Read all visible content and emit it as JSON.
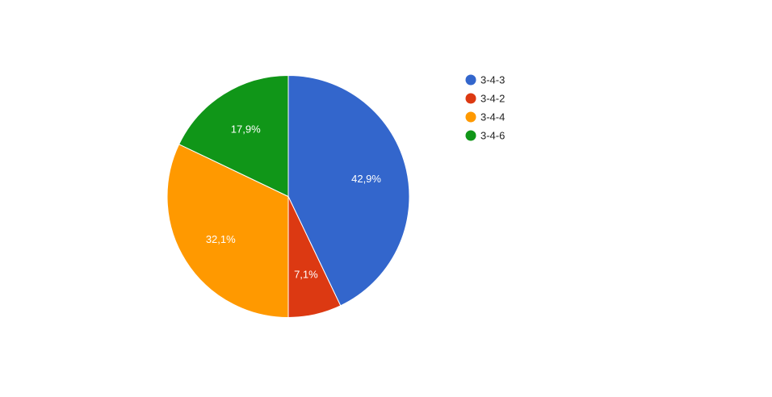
{
  "chart_data": {
    "type": "pie",
    "title": "",
    "legend_position": "right",
    "start_angle_deg": 0,
    "direction": "clockwise",
    "series": [
      {
        "name": "",
        "slices": [
          {
            "label": "3-4-3",
            "value": 42.9,
            "display": "42,9%",
            "color": "#3366cc"
          },
          {
            "label": "3-4-2",
            "value": 7.1,
            "display": "7,1%",
            "color": "#dc3912"
          },
          {
            "label": "3-4-4",
            "value": 32.1,
            "display": "32,1%",
            "color": "#ff9900"
          },
          {
            "label": "3-4-6",
            "value": 17.9,
            "display": "17,9%",
            "color": "#109618"
          }
        ]
      }
    ]
  }
}
